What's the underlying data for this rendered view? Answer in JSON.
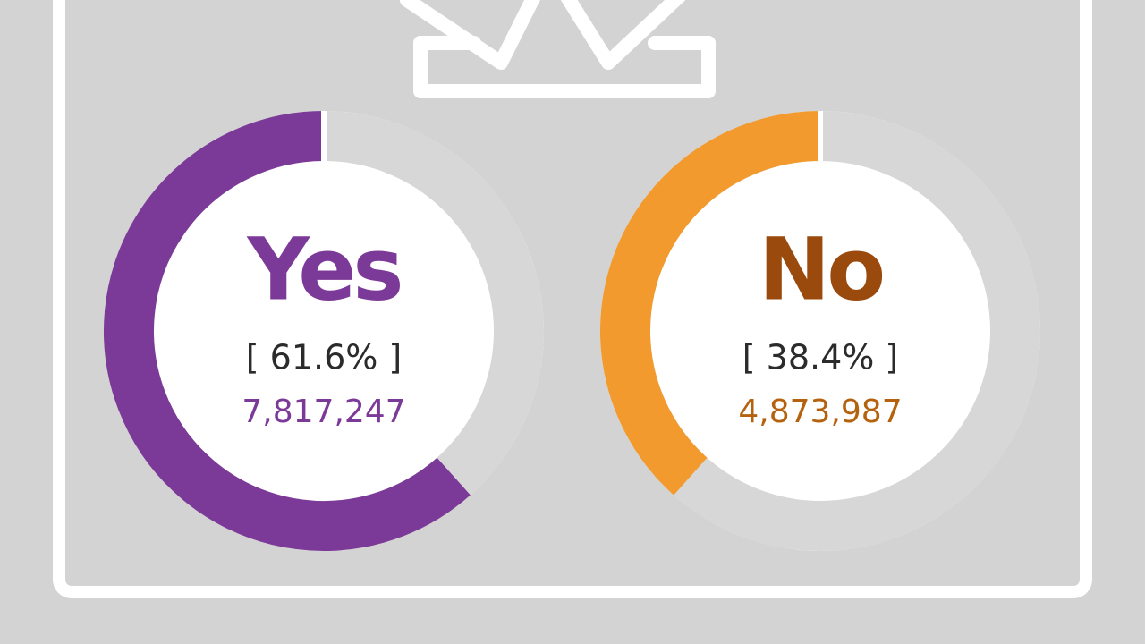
{
  "chart_data": [
    {
      "type": "donut",
      "title": "Yes",
      "values": [
        61.6
      ],
      "value_labels": [
        "[ 61.6% ]"
      ],
      "count": "7,817,247",
      "color": "#7c3a98",
      "title_color": "#7c3a98",
      "count_color": "#7c3a98",
      "track_color": "#d7d7d7"
    },
    {
      "type": "donut",
      "title": "No",
      "values": [
        38.4
      ],
      "value_labels": [
        "[ 38.4% ]"
      ],
      "count": "4,873,987",
      "color": "#f39a2e",
      "title_color": "#9a4a0c",
      "count_color": "#b5620f",
      "track_color": "#d7d7d7"
    }
  ]
}
